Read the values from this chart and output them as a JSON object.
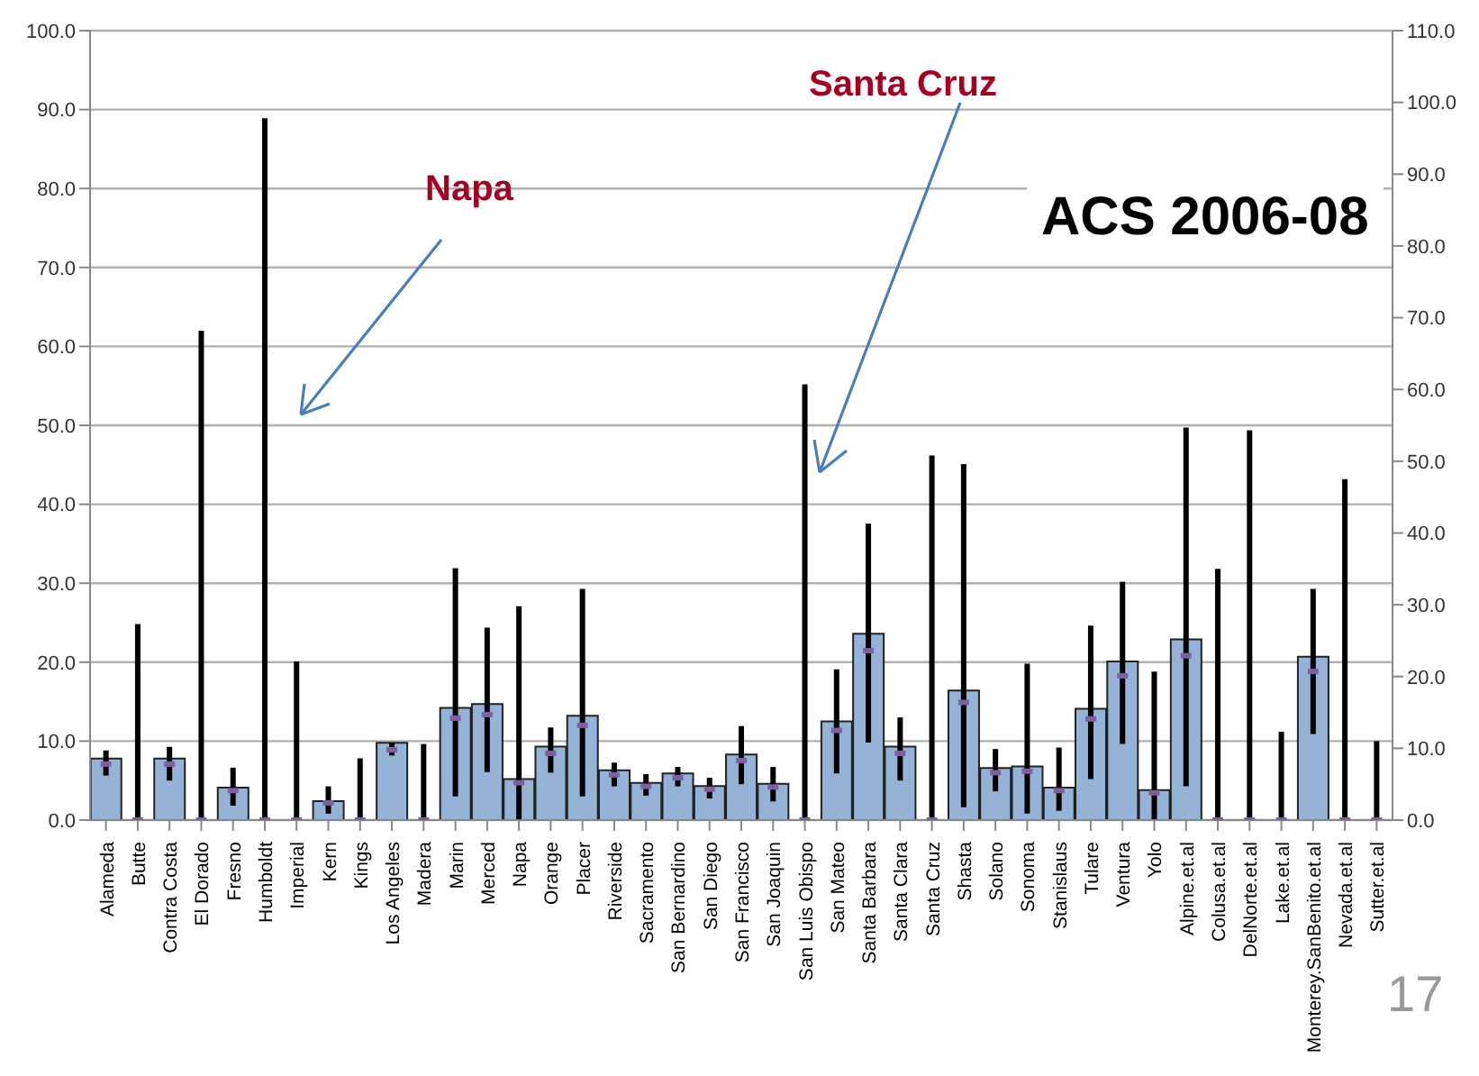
{
  "chart_data": {
    "type": "bar",
    "title": "ACS 2006-08",
    "categories": [
      "Alameda",
      "Butte",
      "Contra Costa",
      "El Dorado",
      "Fresno",
      "Humboldt",
      "Imperial",
      "Kern",
      "Kings",
      "Los Angeles",
      "Madera",
      "Marin",
      "Merced",
      "Napa",
      "Orange",
      "Placer",
      "Riverside",
      "Sacramento",
      "San Bernardino",
      "San Diego",
      "San Francisco",
      "San Joaquin",
      "San Luis Obispo",
      "San Mateo",
      "Santa Barbara",
      "Santa Clara",
      "Santa Cruz",
      "Shasta",
      "Solano",
      "Sonoma",
      "Stanislaus",
      "Tulare",
      "Ventura",
      "Yolo",
      "Alpine.et.al",
      "Colusa.et.al",
      "DelNorte.et.al",
      "Lake.et.al",
      "Monterey.SanBenito.et.al",
      "Nevada.et.al",
      "Sutter.et.al"
    ],
    "series": [
      {
        "type": "bar",
        "color": "#95b3d7",
        "values": [
          7.8,
          null,
          7.8,
          null,
          4.1,
          null,
          null,
          2.4,
          null,
          9.8,
          null,
          14.2,
          14.7,
          5.2,
          9.3,
          13.2,
          6.3,
          4.7,
          5.9,
          4.3,
          8.3,
          4.6,
          null,
          12.5,
          23.6,
          9.3,
          null,
          16.4,
          6.6,
          6.8,
          4.1,
          14.1,
          20.1,
          3.8,
          22.9,
          null,
          null,
          null,
          20.7,
          null,
          null
        ]
      },
      {
        "type": "scatter",
        "axis": "y2",
        "color": "#7f5fa0",
        "values": [
          7.8,
          0,
          7.8,
          0,
          4.1,
          0,
          0,
          2.4,
          0,
          9.8,
          0,
          14.2,
          14.7,
          5.2,
          9.3,
          13.2,
          6.3,
          4.7,
          5.9,
          4.3,
          8.3,
          4.6,
          0,
          12.5,
          23.6,
          9.3,
          0,
          16.4,
          6.6,
          6.8,
          4.1,
          14.1,
          20.1,
          3.8,
          22.9,
          0,
          0,
          0,
          20.7,
          0,
          0
        ],
        "errors": [
          [
            6.2,
            9.7
          ],
          [
            0,
            27.3
          ],
          [
            5.5,
            10.2
          ],
          [
            0,
            68.2
          ],
          [
            2.0,
            7.3
          ],
          [
            0,
            97.8
          ],
          [
            0,
            22.1
          ],
          [
            0.9,
            4.7
          ],
          [
            0,
            8.6
          ],
          [
            9.0,
            10.8
          ],
          [
            0,
            10.6
          ],
          [
            3.3,
            35.1
          ],
          [
            6.7,
            26.8
          ],
          [
            0,
            29.8
          ],
          [
            6.6,
            12.9
          ],
          [
            3.3,
            32.2
          ],
          [
            4.7,
            8.0
          ],
          [
            3.4,
            6.4
          ],
          [
            4.7,
            7.4
          ],
          [
            3.0,
            5.9
          ],
          [
            5.0,
            13.1
          ],
          [
            2.6,
            7.4
          ],
          [
            0,
            60.7
          ],
          [
            6.5,
            21.0
          ],
          [
            10.8,
            41.3
          ],
          [
            5.5,
            14.3
          ],
          [
            0,
            50.8
          ],
          [
            1.8,
            49.6
          ],
          [
            4.0,
            9.9
          ],
          [
            0.9,
            21.8
          ],
          [
            1.3,
            10.1
          ],
          [
            5.7,
            27.1
          ],
          [
            10.6,
            33.2
          ],
          [
            0,
            20.7
          ],
          [
            4.7,
            54.7
          ],
          [
            0,
            35.0
          ],
          [
            0,
            54.3
          ],
          [
            0,
            12.3
          ],
          [
            12.0,
            32.2
          ],
          [
            0,
            47.5
          ],
          [
            0,
            11.0
          ]
        ]
      }
    ],
    "ylim": [
      0,
      100
    ],
    "yticks": [
      {
        "value": 0,
        "label": "0.0"
      },
      {
        "value": 10,
        "label": "10.0"
      },
      {
        "value": 20,
        "label": "20.0"
      },
      {
        "value": 30,
        "label": "30.0"
      },
      {
        "value": 40,
        "label": "40.0"
      },
      {
        "value": 50,
        "label": "50.0"
      },
      {
        "value": 60,
        "label": "60.0"
      },
      {
        "value": 70,
        "label": "70.0"
      },
      {
        "value": 80,
        "label": "80.0"
      },
      {
        "value": 90,
        "label": "90.0"
      },
      {
        "value": 100,
        "label": "100.0"
      }
    ],
    "y2lim": [
      0,
      110
    ],
    "y2ticks": [
      {
        "value": 0,
        "label": "0.0"
      },
      {
        "value": 10,
        "label": "10.0"
      },
      {
        "value": 20,
        "label": "20.0"
      },
      {
        "value": 30,
        "label": "30.0"
      },
      {
        "value": 40,
        "label": "40.0"
      },
      {
        "value": 50,
        "label": "50.0"
      },
      {
        "value": 60,
        "label": "60.0"
      },
      {
        "value": 70,
        "label": "70.0"
      },
      {
        "value": 80,
        "label": "80.0"
      },
      {
        "value": 90,
        "label": "90.0"
      },
      {
        "value": 100,
        "label": "100.0"
      },
      {
        "value": 110,
        "label": "110.0"
      }
    ],
    "grid": "y",
    "marker": "square",
    "annotations": [
      "Napa",
      "Santa Cruz",
      "17"
    ]
  }
}
